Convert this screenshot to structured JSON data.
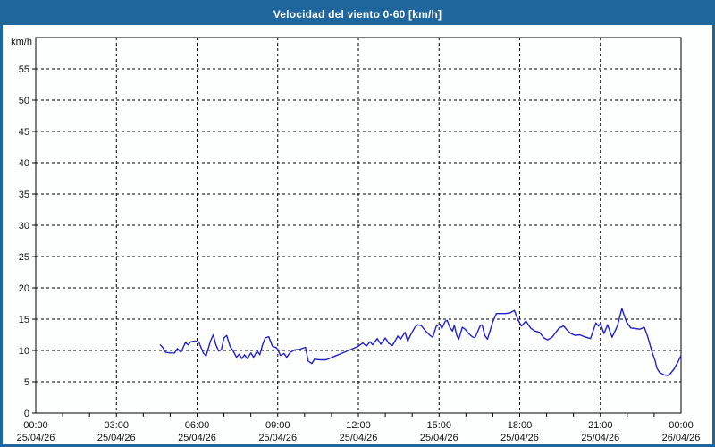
{
  "window": {
    "title": "Velocidad del viento 0-60 [km/h]"
  },
  "colors": {
    "titlebar_bg": "#1f669c",
    "frame_border": "#1f669c",
    "title_text": "#ffffff",
    "plot_background": "#fdfffe",
    "grid": "#000000",
    "line": "#2121c8"
  },
  "chart_data": {
    "type": "line",
    "title": "Velocidad del viento 0-60 [km/h]",
    "ylabel": "km/h",
    "xlabel": "",
    "ylim": [
      0,
      60
    ],
    "y_ticks": [
      0,
      5,
      10,
      15,
      20,
      25,
      30,
      35,
      40,
      45,
      50,
      55
    ],
    "grid": "dashed",
    "legend": "none",
    "x_axis": {
      "unit": "time-minutes",
      "range_minutes": [
        0,
        1440
      ],
      "minor_tick_minutes": 60,
      "major_ticks": [
        {
          "minutes": 0,
          "time": "00:00",
          "date": "25/04/26"
        },
        {
          "minutes": 180,
          "time": "03:00",
          "date": "25/04/26"
        },
        {
          "minutes": 360,
          "time": "06:00",
          "date": "25/04/26"
        },
        {
          "minutes": 540,
          "time": "09:00",
          "date": "25/04/26"
        },
        {
          "minutes": 720,
          "time": "12:00",
          "date": "25/04/26"
        },
        {
          "minutes": 900,
          "time": "15:00",
          "date": "25/04/26"
        },
        {
          "minutes": 1080,
          "time": "18:00",
          "date": "25/04/26"
        },
        {
          "minutes": 1260,
          "time": "21:00",
          "date": "25/04/26"
        },
        {
          "minutes": 1440,
          "time": "00:00",
          "date": "26/04/26"
        }
      ]
    },
    "series": [
      {
        "name": "velocidad-del-viento",
        "color": "#2121c8",
        "points_minutes_kmh": [
          [
            278,
            10.9
          ],
          [
            284,
            10.4
          ],
          [
            290,
            9.7
          ],
          [
            300,
            9.6
          ],
          [
            310,
            9.6
          ],
          [
            316,
            10.3
          ],
          [
            324,
            9.7
          ],
          [
            334,
            11.3
          ],
          [
            340,
            10.9
          ],
          [
            346,
            11.4
          ],
          [
            356,
            11.5
          ],
          [
            364,
            11.3
          ],
          [
            374,
            9.6
          ],
          [
            380,
            9.1
          ],
          [
            390,
            11.5
          ],
          [
            396,
            12.5
          ],
          [
            402,
            10.9
          ],
          [
            408,
            9.9
          ],
          [
            414,
            10.1
          ],
          [
            420,
            12.0
          ],
          [
            426,
            12.4
          ],
          [
            434,
            10.6
          ],
          [
            440,
            10.0
          ],
          [
            448,
            8.9
          ],
          [
            454,
            9.4
          ],
          [
            460,
            8.7
          ],
          [
            466,
            9.3
          ],
          [
            472,
            8.7
          ],
          [
            480,
            9.6
          ],
          [
            486,
            8.9
          ],
          [
            494,
            9.9
          ],
          [
            500,
            9.3
          ],
          [
            506,
            10.9
          ],
          [
            512,
            12.0
          ],
          [
            520,
            12.2
          ],
          [
            528,
            10.7
          ],
          [
            538,
            10.4
          ],
          [
            546,
            9.2
          ],
          [
            554,
            9.5
          ],
          [
            560,
            8.9
          ],
          [
            568,
            9.7
          ],
          [
            578,
            10.1
          ],
          [
            590,
            10.2
          ],
          [
            602,
            10.5
          ],
          [
            608,
            8.3
          ],
          [
            616,
            7.9
          ],
          [
            622,
            8.6
          ],
          [
            634,
            8.5
          ],
          [
            648,
            8.5
          ],
          [
            668,
            9.1
          ],
          [
            688,
            9.7
          ],
          [
            708,
            10.3
          ],
          [
            718,
            10.6
          ],
          [
            730,
            11.2
          ],
          [
            738,
            10.7
          ],
          [
            746,
            11.4
          ],
          [
            752,
            10.9
          ],
          [
            762,
            11.9
          ],
          [
            770,
            11.0
          ],
          [
            780,
            12.0
          ],
          [
            788,
            11.1
          ],
          [
            796,
            10.8
          ],
          [
            808,
            12.3
          ],
          [
            814,
            11.8
          ],
          [
            824,
            12.9
          ],
          [
            830,
            11.5
          ],
          [
            836,
            12.4
          ],
          [
            846,
            13.7
          ],
          [
            852,
            14.1
          ],
          [
            860,
            14.0
          ],
          [
            870,
            13.1
          ],
          [
            880,
            12.4
          ],
          [
            886,
            12.1
          ],
          [
            894,
            13.9
          ],
          [
            902,
            14.2
          ],
          [
            906,
            13.5
          ],
          [
            914,
            14.7
          ],
          [
            918,
            14.8
          ],
          [
            924,
            13.7
          ],
          [
            930,
            13.1
          ],
          [
            934,
            14.0
          ],
          [
            940,
            12.3
          ],
          [
            944,
            11.8
          ],
          [
            952,
            13.7
          ],
          [
            958,
            13.4
          ],
          [
            966,
            12.7
          ],
          [
            974,
            12.2
          ],
          [
            980,
            12.0
          ],
          [
            992,
            14.0
          ],
          [
            996,
            14.1
          ],
          [
            1002,
            12.4
          ],
          [
            1008,
            11.8
          ],
          [
            1020,
            14.6
          ],
          [
            1028,
            15.9
          ],
          [
            1038,
            15.9
          ],
          [
            1048,
            15.9
          ],
          [
            1058,
            16.0
          ],
          [
            1068,
            16.4
          ],
          [
            1076,
            14.9
          ],
          [
            1084,
            13.9
          ],
          [
            1094,
            14.7
          ],
          [
            1104,
            13.6
          ],
          [
            1114,
            13.1
          ],
          [
            1124,
            12.9
          ],
          [
            1134,
            12.0
          ],
          [
            1142,
            11.7
          ],
          [
            1152,
            12.1
          ],
          [
            1168,
            13.6
          ],
          [
            1178,
            13.9
          ],
          [
            1184,
            13.4
          ],
          [
            1194,
            12.7
          ],
          [
            1204,
            12.4
          ],
          [
            1214,
            12.5
          ],
          [
            1224,
            12.2
          ],
          [
            1238,
            11.9
          ],
          [
            1250,
            14.4
          ],
          [
            1256,
            13.9
          ],
          [
            1260,
            14.3
          ],
          [
            1268,
            12.7
          ],
          [
            1276,
            14.1
          ],
          [
            1282,
            12.9
          ],
          [
            1286,
            12.1
          ],
          [
            1298,
            13.9
          ],
          [
            1308,
            16.7
          ],
          [
            1318,
            14.6
          ],
          [
            1328,
            13.6
          ],
          [
            1338,
            13.5
          ],
          [
            1348,
            13.4
          ],
          [
            1358,
            13.7
          ],
          [
            1366,
            12.1
          ],
          [
            1372,
            10.6
          ],
          [
            1376,
            9.6
          ],
          [
            1382,
            8.4
          ],
          [
            1386,
            7.2
          ],
          [
            1392,
            6.5
          ],
          [
            1402,
            6.1
          ],
          [
            1410,
            6.0
          ],
          [
            1416,
            6.3
          ],
          [
            1424,
            7.0
          ],
          [
            1432,
            8.0
          ],
          [
            1440,
            9.2
          ]
        ]
      }
    ]
  }
}
